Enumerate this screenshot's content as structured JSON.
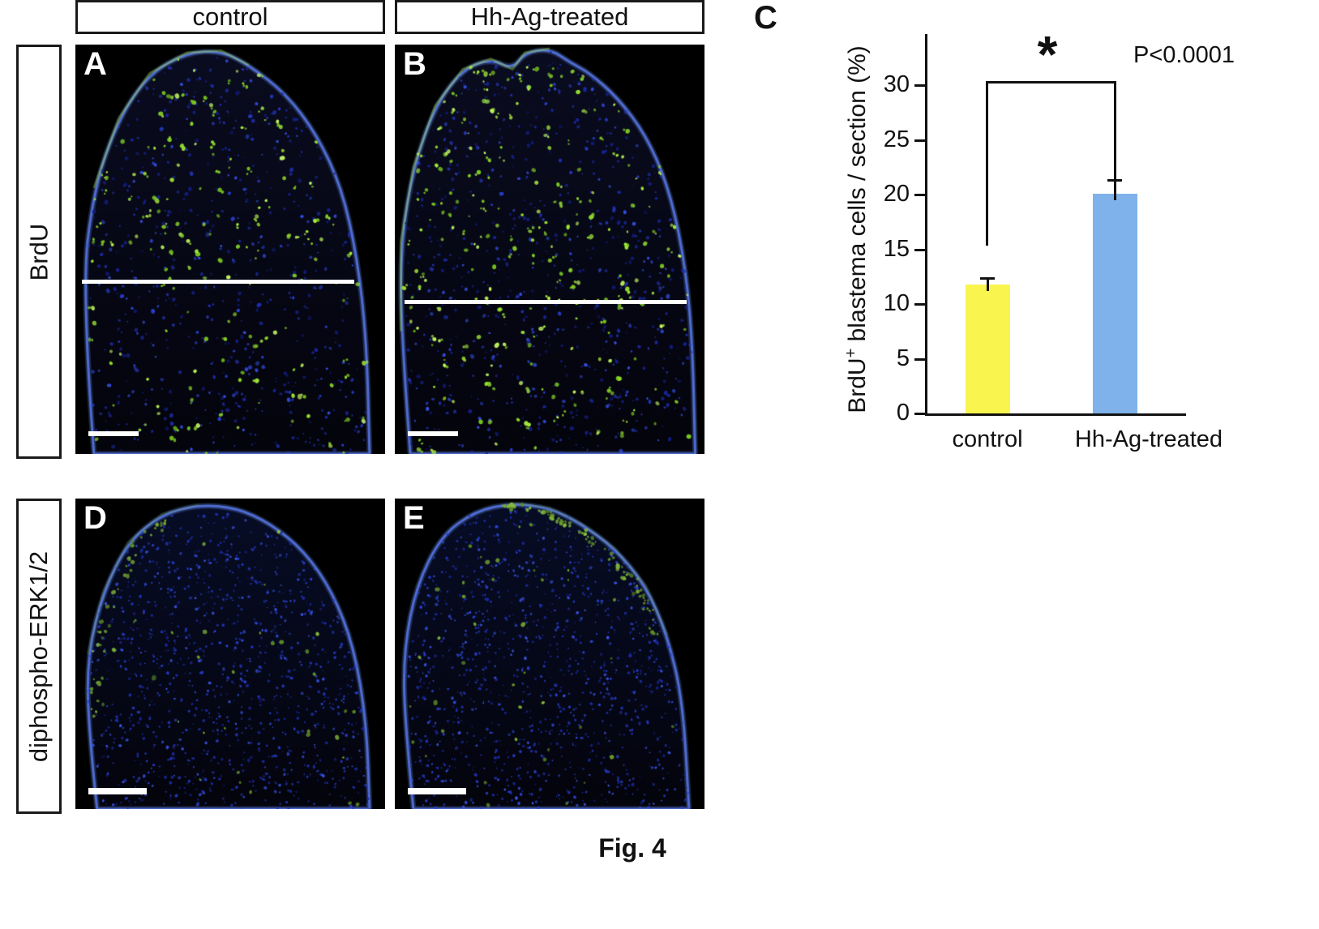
{
  "figure": {
    "caption": "Fig. 4"
  },
  "column_headers": {
    "control": "control",
    "treated": "Hh-Ag-treated"
  },
  "row_labels": {
    "top": "BrdU",
    "bottom": "diphospho-ERK1/2"
  },
  "panel_labels": {
    "a": "A",
    "b": "B",
    "c": "C",
    "d": "D",
    "e": "E"
  },
  "chart_data": {
    "type": "bar",
    "categories": [
      "control",
      "Hh-Ag-treated"
    ],
    "values": [
      11.8,
      20.1
    ],
    "errors": [
      0.6,
      1.2
    ],
    "bar_colors": [
      "#f9f44e",
      "#7fb2ea"
    ],
    "title": "",
    "xlabel": "",
    "ylabel": "BrdU+ blastema cells / section (%)",
    "ylabel_parts": {
      "base": "BrdU",
      "sup": "+",
      "rest": " blastema cells / section (%)"
    },
    "yticks": [
      0,
      5,
      10,
      15,
      20,
      25,
      30
    ],
    "ylim": [
      0,
      34
    ],
    "grid": false,
    "legend": false,
    "significance": {
      "symbol": "*",
      "p_text": "P<0.0001"
    }
  }
}
